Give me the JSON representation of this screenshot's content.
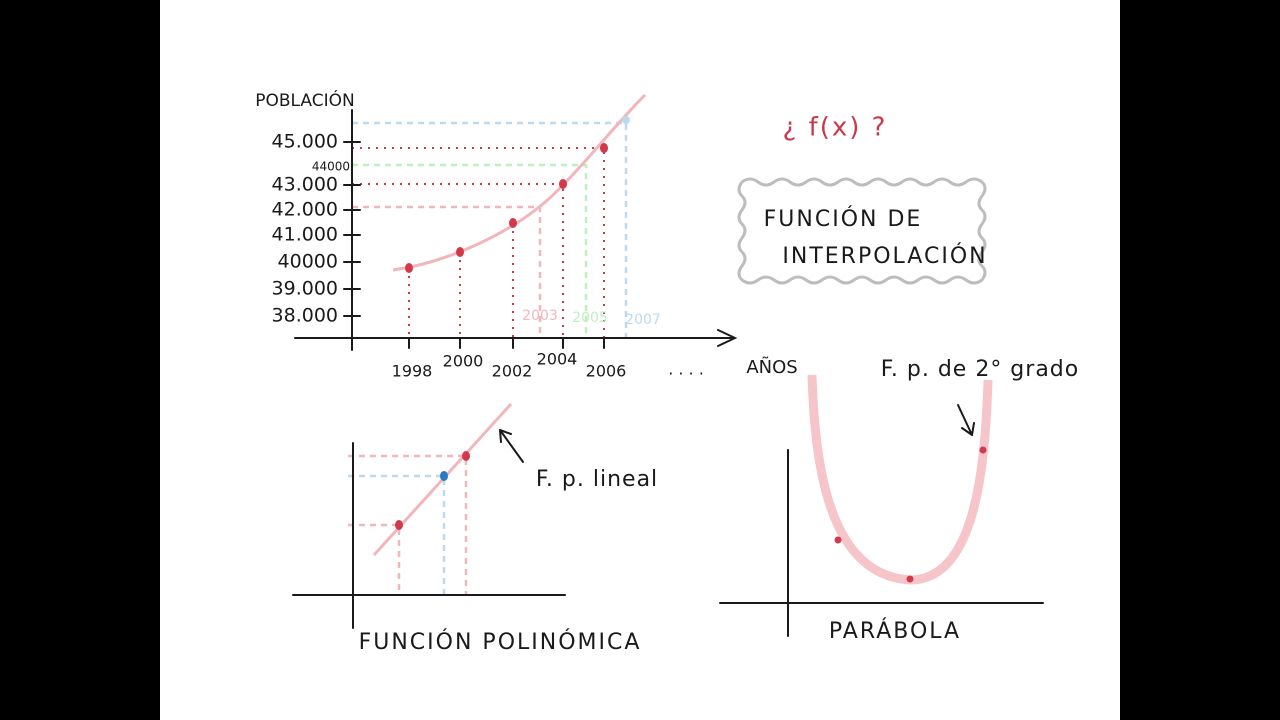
{
  "main_chart": {
    "y_axis_label": "POBLACIÓN",
    "y_labels": [
      "45.000",
      "44000",
      "43.000",
      "42.000",
      "41.000",
      "40000",
      "39.000",
      "38.000"
    ],
    "x_labels": [
      "1998",
      "2000",
      "2002",
      "2004",
      "2006"
    ],
    "highlighted_years": [
      "2003",
      "2005",
      "2007"
    ],
    "ellipsis": ". . . .",
    "x_axis_label": "AÑOS"
  },
  "question": "¿ f(x) ?",
  "box": {
    "line1": "FUNCIÓN DE",
    "line2": "INTERPOLACIÓN"
  },
  "linear": {
    "annotation": "F. p. lineal",
    "caption": "FUNCIÓN POLINÓMICA"
  },
  "parabola": {
    "annotation": "F. p. de 2° grado",
    "caption": "PARÁBOLA"
  }
}
